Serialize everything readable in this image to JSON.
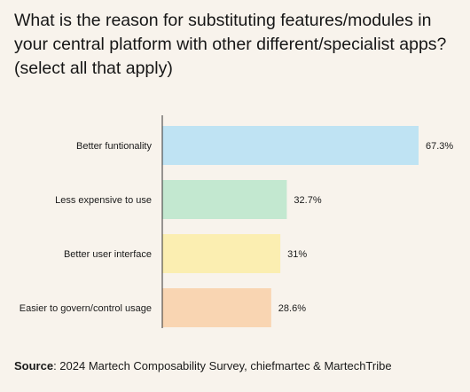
{
  "chart_data": {
    "type": "bar",
    "orientation": "horizontal",
    "title": "What is the reason for substituting features/modules in your central platform with other different/specialist apps? (select all that apply)",
    "categories": [
      "Better funtionality",
      "Less expensive to use",
      "Better user interface",
      "Easier to govern/control usage"
    ],
    "values": [
      67.3,
      32.7,
      31,
      28.6
    ],
    "value_labels": [
      "67.3%",
      "32.7%",
      "31%",
      "28.6%"
    ],
    "colors": [
      "#bfe3f3",
      "#c3e8d0",
      "#fbeeb1",
      "#f9d5b2"
    ],
    "xlim": [
      0,
      68
    ],
    "grid": false
  },
  "source": {
    "label": "Source",
    "text": ": 2024 Martech Composability Survey, chiefmartec & MartechTribe"
  }
}
